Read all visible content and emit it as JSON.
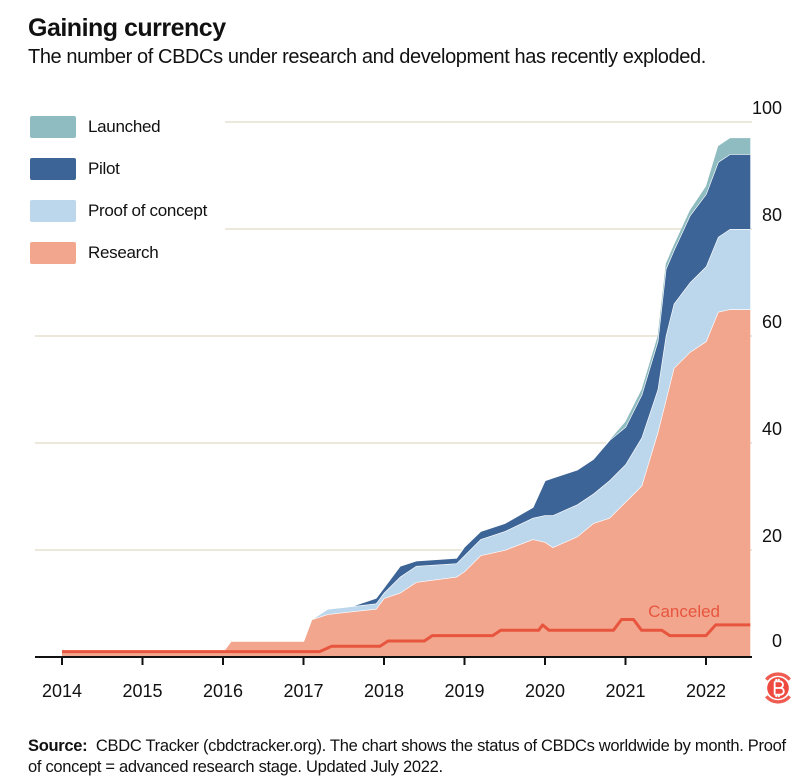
{
  "title": "Gaining currency",
  "subtitle": "The number of CBDCs under research and development has recently exploded.",
  "source_label": "Source:",
  "source_text": "CBDC Tracker (cbdctracker.org). The chart shows the status of CBDCs worldwide by month. Proof of concept = advanced research stage. Updated July 2022.",
  "chart_data": {
    "type": "area",
    "stacked": true,
    "title": "Gaining currency",
    "xlabel": "",
    "ylabel": "",
    "xlim": [
      2014,
      2022.6
    ],
    "ylim": [
      0,
      100
    ],
    "x_ticks": [
      "2014",
      "2015",
      "2016",
      "2017",
      "2018",
      "2019",
      "2020",
      "2021",
      "2022"
    ],
    "y_ticks": [
      0,
      20,
      40,
      60,
      80,
      100
    ],
    "grid": true,
    "legend_placement": "top-left",
    "x": [
      2014.0,
      2016.0,
      2016.1,
      2017.0,
      2017.1,
      2017.3,
      2017.6,
      2017.9,
      2018.0,
      2018.2,
      2018.4,
      2018.9,
      2019.0,
      2019.2,
      2019.5,
      2019.85,
      2020.0,
      2020.1,
      2020.4,
      2020.6,
      2020.8,
      2021.0,
      2021.2,
      2021.4,
      2021.5,
      2021.6,
      2021.8,
      2022.0,
      2022.15,
      2022.3,
      2022.55
    ],
    "series": [
      {
        "name": "Research",
        "color": "#f2a68e",
        "values": [
          1,
          1,
          3,
          3,
          7,
          8,
          8.5,
          9,
          11,
          12,
          14,
          15,
          16,
          19,
          20,
          22,
          21.5,
          20.5,
          22.5,
          25,
          26,
          29,
          32,
          42,
          48,
          54,
          57,
          59,
          64.5,
          65,
          65
        ]
      },
      {
        "name": "Proof of concept",
        "color": "#bcd6ec",
        "values": [
          0,
          0,
          0,
          0,
          0,
          1,
          1,
          1,
          1,
          3,
          3,
          2.5,
          3,
          3,
          3.5,
          4,
          5,
          6,
          6,
          5.5,
          7,
          7,
          9,
          8,
          12,
          12,
          13,
          14,
          14,
          15,
          15
        ]
      },
      {
        "name": "Pilot",
        "color": "#3d6496",
        "values": [
          0,
          0,
          0,
          0,
          0,
          0,
          0,
          1,
          1,
          2,
          1,
          1,
          1.6,
          1.5,
          1.5,
          2,
          6.5,
          7,
          6.5,
          6.5,
          7.5,
          7,
          8,
          9,
          12.5,
          10,
          12.5,
          13.5,
          14,
          14,
          14
        ]
      },
      {
        "name": "Launched",
        "color": "#8fbcc0",
        "values": [
          0,
          0,
          0,
          0,
          0,
          0,
          0,
          0,
          0,
          0,
          0,
          0,
          0,
          0,
          0,
          0,
          0,
          0,
          0,
          0,
          0,
          1,
          1,
          1,
          1,
          1,
          1,
          1.5,
          3,
          3,
          3
        ]
      }
    ],
    "canceled": {
      "name": "Canceled",
      "color": "#e8553f",
      "x": [
        2014.0,
        2017.2,
        2017.35,
        2017.95,
        2018.05,
        2018.5,
        2018.6,
        2019.35,
        2019.45,
        2019.92,
        2019.97,
        2020.05,
        2020.85,
        2020.95,
        2021.1,
        2021.2,
        2021.45,
        2021.55,
        2022.0,
        2022.12,
        2022.55
      ],
      "values": [
        1,
        1,
        2,
        2,
        3,
        3,
        4,
        4,
        5,
        5,
        6,
        5,
        5,
        7,
        7,
        5,
        5,
        4,
        4,
        6,
        6
      ]
    }
  }
}
